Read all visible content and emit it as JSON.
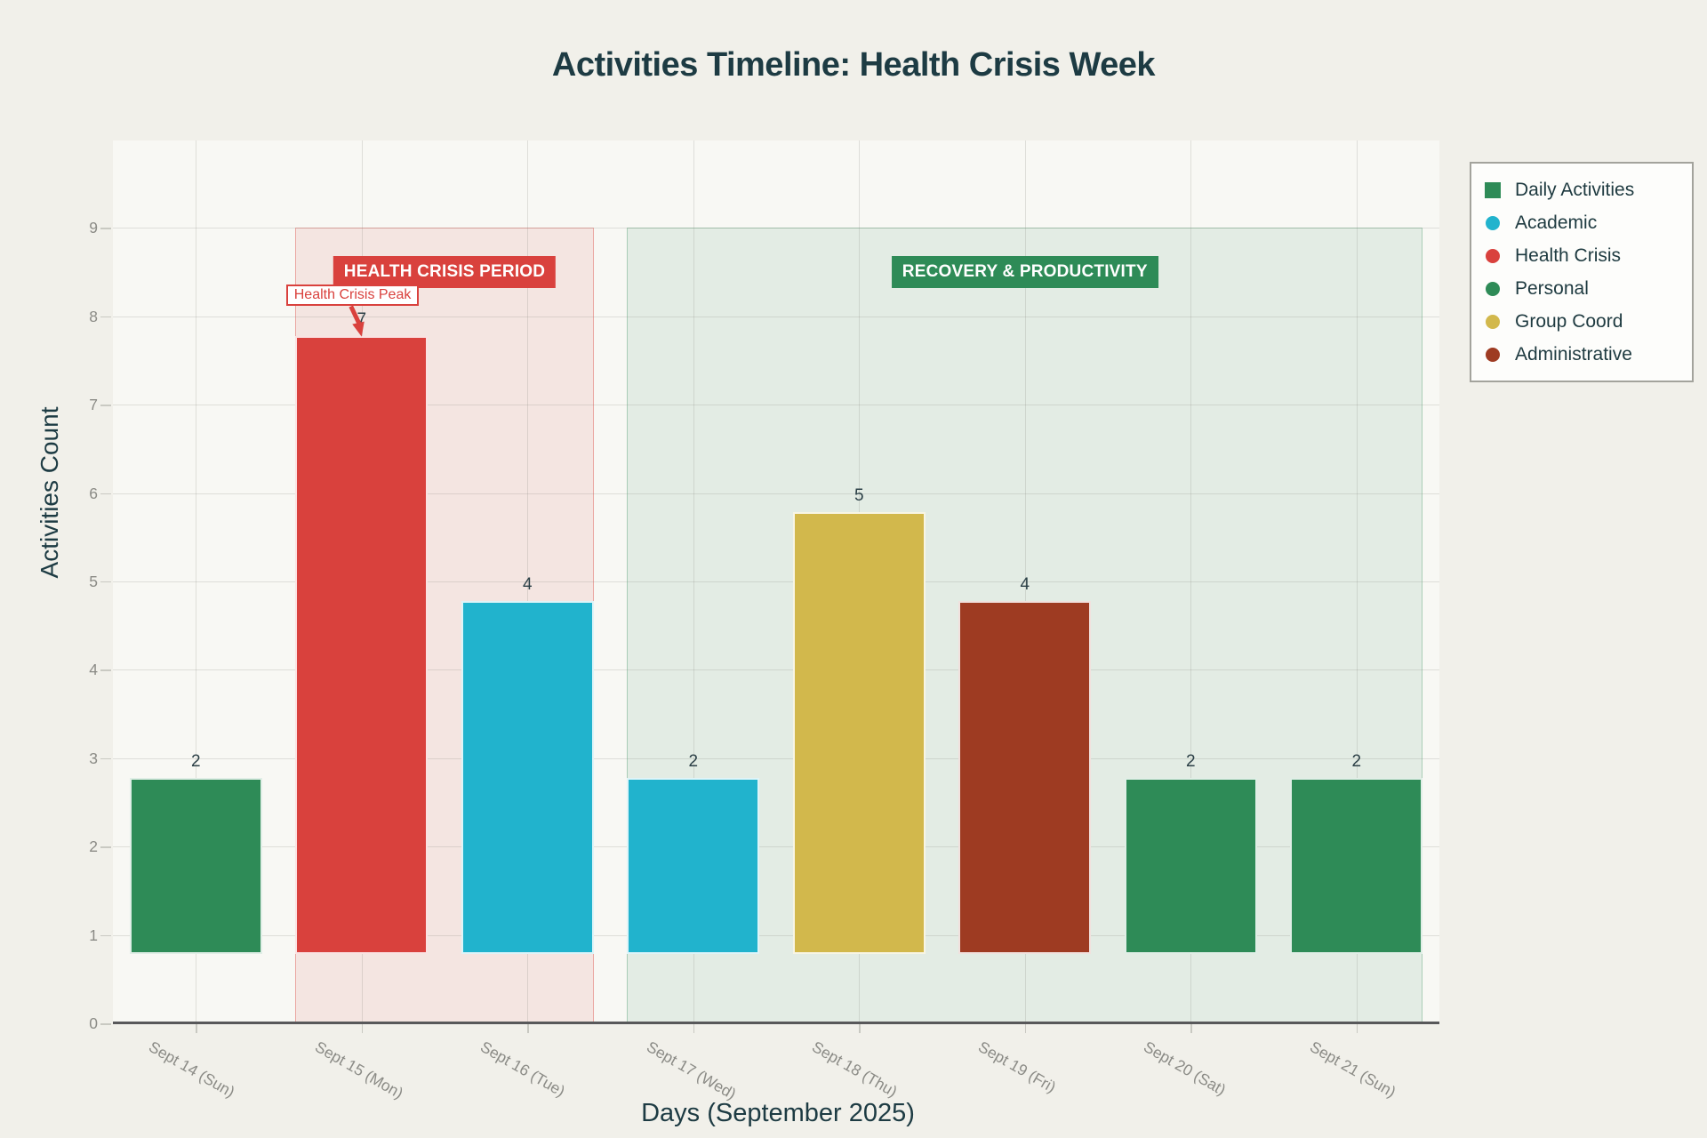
{
  "chart_data": {
    "type": "bar",
    "title": "Activities Timeline: Health Crisis Week",
    "xlabel": "Days (September 2025)",
    "ylabel": "Activities Count",
    "categories": [
      "Sept 14 (Sun)",
      "Sept 15 (Mon)",
      "Sept 16 (Tue)",
      "Sept 17 (Wed)",
      "Sept 18 (Thu)",
      "Sept 19 (Fri)",
      "Sept 20 (Sat)",
      "Sept 21 (Sun)"
    ],
    "values": [
      2,
      7,
      4,
      2,
      5,
      4,
      2,
      2
    ],
    "bar_colors": [
      "#2e8b57",
      "#d9413d",
      "#21b3cd",
      "#21b3cd",
      "#d2b84c",
      "#9e3b22",
      "#2e8b57",
      "#2e8b57"
    ],
    "bar_base": 0.78,
    "ylim": [
      0,
      9
    ],
    "yticks": [
      0,
      1,
      2,
      3,
      4,
      5,
      6,
      7,
      8,
      9
    ],
    "grid": true,
    "legend": {
      "position": "top-right",
      "items": [
        {
          "label": "Daily Activities",
          "color": "#2e8b57",
          "shape": "square"
        },
        {
          "label": "Academic",
          "color": "#21b3cd",
          "shape": "circle"
        },
        {
          "label": "Health Crisis",
          "color": "#d9413d",
          "shape": "circle"
        },
        {
          "label": "Personal",
          "color": "#2e8b57",
          "shape": "circle"
        },
        {
          "label": "Group Coord",
          "color": "#d2b84c",
          "shape": "circle"
        },
        {
          "label": "Administrative",
          "color": "#9e3b22",
          "shape": "circle"
        }
      ]
    },
    "regions": [
      {
        "label": "HEALTH CRISIS PERIOD",
        "start_cat": 1,
        "end_cat": 2,
        "fill": "rgba(217,65,61,0.10)",
        "border": "rgba(217,65,61,0.38)",
        "label_bg": "#d9413d"
      },
      {
        "label": "RECOVERY & PRODUCTIVITY",
        "start_cat": 3,
        "end_cat": 7,
        "fill": "rgba(46,139,87,0.10)",
        "border": "rgba(46,139,87,0.32)",
        "label_bg": "#2e8b57"
      }
    ],
    "annotations": [
      {
        "text": "Health Crisis Peak",
        "target_cat": 1,
        "target_value": 7.78,
        "color": "#d9413d"
      }
    ],
    "colors": {
      "background": "#f1f0ea",
      "plot_background": "#f8f8f4",
      "axis_line": "#58585a",
      "tick_label": "#8b8b86",
      "text": "#1d3b43"
    }
  }
}
